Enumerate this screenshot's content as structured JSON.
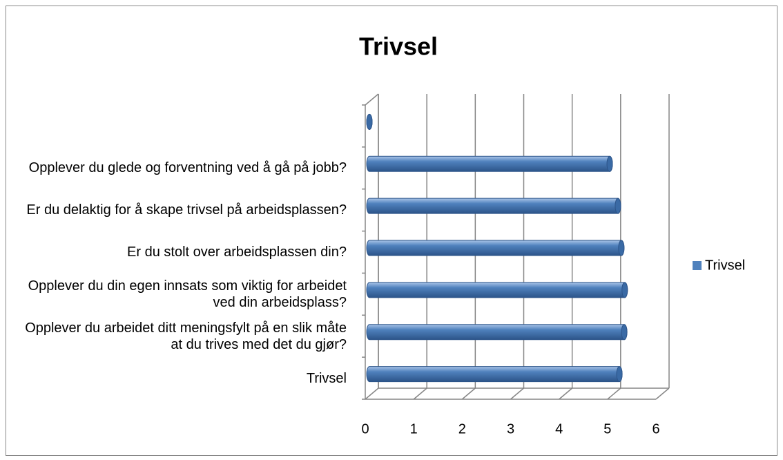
{
  "chart_data": {
    "type": "bar",
    "orientation": "horizontal",
    "title": "Trivsel",
    "categories": [
      "Trivsel",
      "Opplever du arbeidet ditt meningsfylt på en slik måte at du trives med det du gjør?",
      "Opplever du din egen innsats som viktig for arbeidet ved din arbeidsplass?",
      "Er du stolt over arbeidsplassen din?",
      "Er du delaktig for å skape trivsel på arbeidsplassen?",
      "Opplever du glede og forventning ved å gå på jobb?",
      null
    ],
    "series": [
      {
        "name": "Trivsel",
        "color": "#4f81bd",
        "values": [
          5.16,
          5.26,
          5.27,
          5.2,
          5.13,
          4.96,
          0
        ]
      }
    ],
    "xlim": [
      0,
      6
    ],
    "xticks": [
      0,
      1,
      2,
      3,
      4,
      5,
      6
    ],
    "grid": true,
    "legend": "right"
  }
}
